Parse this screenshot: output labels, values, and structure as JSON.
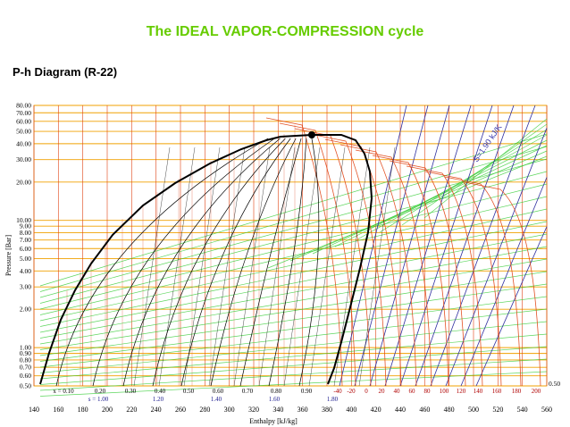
{
  "header": {
    "title": "The IDEAL VAPOR-COMPRESSION cycle",
    "subtitle": "P-h Diagram (R-22)"
  },
  "diagram": {
    "y_axis_label": "Pressure [Bar]",
    "x_axis_label": "Enthalpy [kJ/kg]",
    "pressure_ticks": [
      "80.00",
      "70.00",
      "60.00",
      "50.00",
      "40.00",
      "30.00",
      "20.00",
      "10.00",
      "9.00",
      "8.00",
      "7.00",
      "6.00",
      "5.00",
      "4.00",
      "3.00",
      "2.00",
      "1.00",
      "0.90",
      "0.80",
      "0.70",
      "0.60",
      "0.50"
    ],
    "enthalpy_ticks": [
      "140",
      "160",
      "180",
      "200",
      "220",
      "240",
      "260",
      "280",
      "300",
      "320",
      "340",
      "360",
      "380",
      "400",
      "420",
      "440",
      "460",
      "480",
      "500",
      "520",
      "540",
      "560"
    ],
    "quality_labels": [
      "x = 0.10",
      "0.20",
      "0.30",
      "0.40",
      "0.50",
      "0.60",
      "0.70",
      "0.80",
      "0.90"
    ],
    "entropy_labels": [
      "s = 1.00",
      "1.20",
      "1.40",
      "1.60",
      "1.80"
    ],
    "temperature_labels": [
      "-40",
      "-20",
      "0",
      "20",
      "40",
      "60",
      "80",
      "100",
      "120",
      "140",
      "160",
      "180",
      "200"
    ],
    "isentrope_annotation": "S=1.90 kJ/K",
    "corner_label": "0.50",
    "colors": {
      "saturation_dome": "#000000",
      "isotherm": "#e04010",
      "isobar_grid": "#f0a000",
      "isentrope": "#3030a0",
      "isochore": "#33cc33",
      "quality_line": "#000000",
      "title": "#66cc00"
    }
  }
}
